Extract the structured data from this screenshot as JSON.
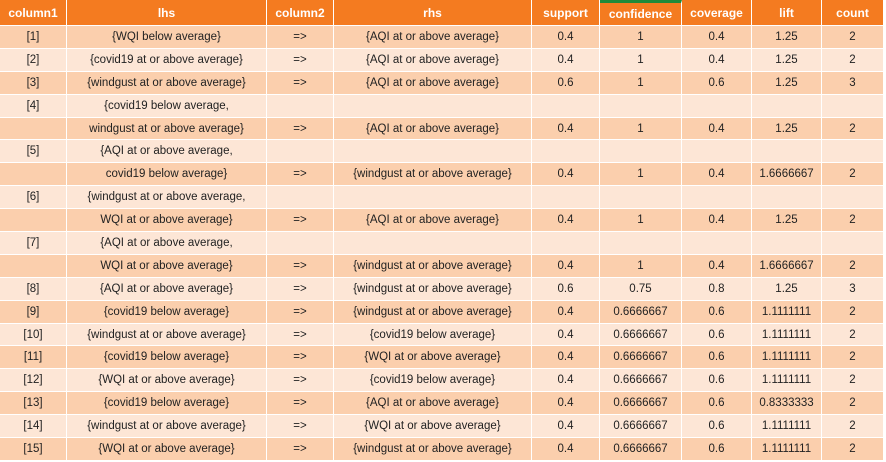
{
  "table": {
    "headers": [
      "column1",
      "lhs",
      "column2",
      "rhs",
      "support",
      "confidence",
      "coverage",
      "lift",
      "count"
    ],
    "rows": [
      [
        "[1]",
        "{WQI below average}",
        "=>",
        "{AQI at or above average}",
        "0.4",
        "1",
        "0.4",
        "1.25",
        "2"
      ],
      [
        "[2]",
        "{covid19 at or above average}",
        "=>",
        "{AQI at or above average}",
        "0.4",
        "1",
        "0.4",
        "1.25",
        "2"
      ],
      [
        "[3]",
        "{windgust at or above average}",
        "=>",
        "{AQI at or above average}",
        "0.6",
        "1",
        "0.6",
        "1.25",
        "3"
      ],
      [
        "[4]",
        "{covid19 below average,",
        "",
        "",
        "",
        "",
        "",
        "",
        ""
      ],
      [
        "",
        "windgust at or above average}",
        "=>",
        "{AQI at or above average}",
        "0.4",
        "1",
        "0.4",
        "1.25",
        "2"
      ],
      [
        "[5]",
        "{AQI at or above average,",
        "",
        "",
        "",
        "",
        "",
        "",
        ""
      ],
      [
        "",
        "covid19 below average}",
        "=>",
        "{windgust at or above average}",
        "0.4",
        "1",
        "0.4",
        "1.6666667",
        "2"
      ],
      [
        "[6]",
        "{windgust at or above average,",
        "",
        "",
        "",
        "",
        "",
        "",
        ""
      ],
      [
        "",
        "WQI at or above average}",
        "=>",
        "{AQI at or above average}",
        "0.4",
        "1",
        "0.4",
        "1.25",
        "2"
      ],
      [
        "[7]",
        "{AQI at or above average,",
        "",
        "",
        "",
        "",
        "",
        "",
        ""
      ],
      [
        "",
        "WQI at or above average}",
        "=>",
        "{windgust at or above average}",
        "0.4",
        "1",
        "0.4",
        "1.6666667",
        "2"
      ],
      [
        "[8]",
        "{AQI at or above average}",
        "=>",
        "{windgust at or above average}",
        "0.6",
        "0.75",
        "0.8",
        "1.25",
        "3"
      ],
      [
        "[9]",
        "{covid19 below average}",
        "=>",
        "{windgust at or above average}",
        "0.4",
        "0.6666667",
        "0.6",
        "1.1111111",
        "2"
      ],
      [
        "[10]",
        "{windgust at or above average}",
        "=>",
        "{covid19 below average}",
        "0.4",
        "0.6666667",
        "0.6",
        "1.1111111",
        "2"
      ],
      [
        "[11]",
        "{covid19 below average}",
        "=>",
        "{WQI at or above average}",
        "0.4",
        "0.6666667",
        "0.6",
        "1.1111111",
        "2"
      ],
      [
        "[12]",
        "{WQI at or above average}",
        "=>",
        "{covid19 below average}",
        "0.4",
        "0.6666667",
        "0.6",
        "1.1111111",
        "2"
      ],
      [
        "[13]",
        "{covid19 below average}",
        "=>",
        "{AQI at or above average}",
        "0.4",
        "0.6666667",
        "0.6",
        "0.8333333",
        "2"
      ],
      [
        "[14]",
        "{windgust at or above average}",
        "=>",
        "{WQI at or above average}",
        "0.4",
        "0.6666667",
        "0.6",
        "1.1111111",
        "2"
      ],
      [
        "[15]",
        "{WQI at or above average}",
        "=>",
        "{windgust at or above average}",
        "0.4",
        "0.6666667",
        "0.6",
        "1.1111111",
        "2"
      ]
    ]
  },
  "colors": {
    "header_bg": "#f47b20",
    "row_dark": "#fbcfad",
    "row_light": "#fde6d6",
    "selected_accent": "#1f8a3a"
  }
}
